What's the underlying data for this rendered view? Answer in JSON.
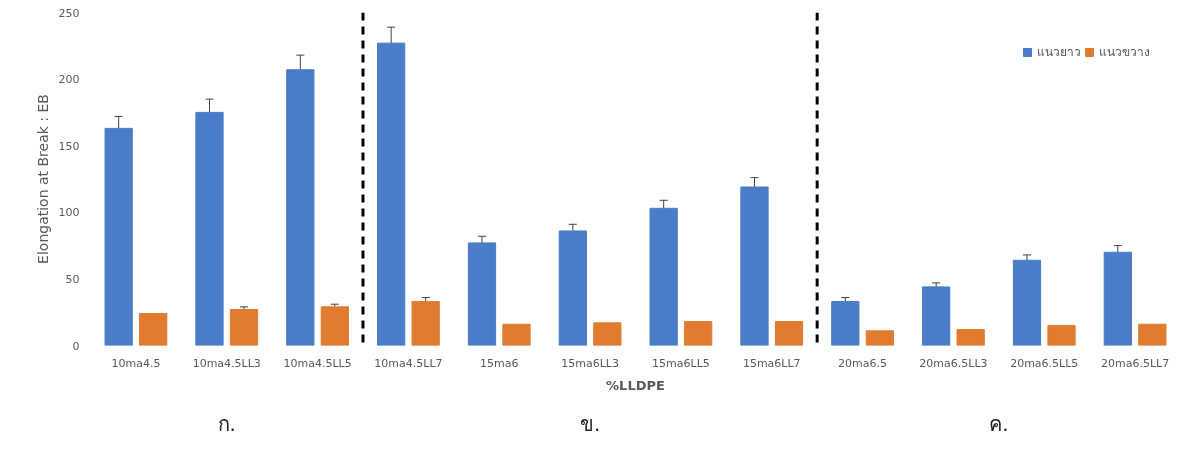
{
  "chart_data": {
    "type": "bar",
    "xlabel": "%LLDPE",
    "ylabel": "Elongation at Break : EB",
    "categories": [
      "10ma4.5",
      "10ma4.5LL3",
      "10ma4.5LL5",
      "10ma4.5LL7",
      "15ma6",
      "15ma6LL3",
      "15ma6LL5",
      "15ma6LL7",
      "20ma6.5",
      "20ma6.5LL3",
      "20ma6.5LL5",
      "20ma6.5LL7"
    ],
    "series": [
      {
        "name": "แนวยาว",
        "color": "#4a7cc7",
        "values": [
          163,
          175,
          207,
          227,
          77,
          86,
          103,
          119,
          33,
          44,
          64,
          70
        ],
        "errors": [
          9,
          10,
          11,
          12,
          5,
          5,
          6,
          7,
          3,
          3,
          4,
          5
        ]
      },
      {
        "name": "แนวขวาง",
        "color": "#e07b30",
        "values": [
          24,
          27,
          29,
          33,
          16,
          17,
          18,
          18,
          11,
          12,
          15,
          16
        ],
        "errors": [
          null,
          2,
          2,
          3,
          null,
          null,
          null,
          null,
          null,
          null,
          null,
          null
        ]
      }
    ],
    "ylim": [
      0,
      250
    ],
    "yticks": [
      0,
      50,
      100,
      150,
      200,
      250
    ],
    "grid": false,
    "legend": "top right",
    "annotations": [
      "ก.",
      "ข.",
      "ค."
    ]
  }
}
